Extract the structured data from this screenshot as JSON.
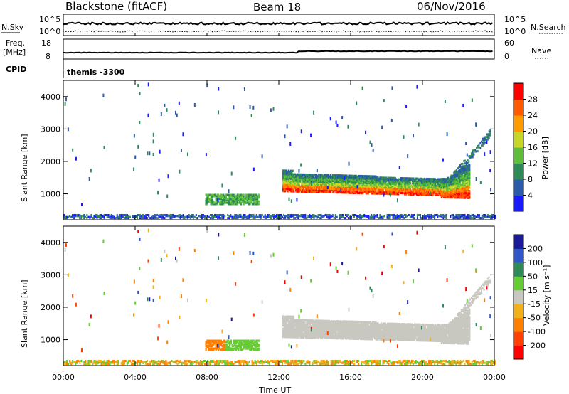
{
  "header": {
    "station": "Blackstone (fitACF)",
    "beam": "Beam 18",
    "date": "06/Nov/2016"
  },
  "top_panels": {
    "nsky_label": "N.Sky",
    "nsearch_label": "N.Search",
    "nsky_ticks": [
      "10^5",
      "10^0"
    ],
    "nsearch_ticks": [
      "10^5",
      "10^0"
    ],
    "freq_label": "Freq.",
    "freq_unit": "[MHz]",
    "freq_ticks": [
      "18",
      "8"
    ],
    "nave_label": "Nave",
    "nave_ticks": [
      "60",
      "0"
    ],
    "cpid_label": "CPID",
    "cpid_text": "themis -3300"
  },
  "chart_data": [
    {
      "type": "heatmap",
      "name": "power",
      "ylabel": "Slant Range [km]",
      "yticks": [
        "1000",
        "2000",
        "3000",
        "4000"
      ],
      "ylim": [
        200,
        4500
      ],
      "xlim": [
        0,
        24
      ],
      "colorbar_label": "Power [dB]",
      "colorbar_ticks": [
        "4",
        "8",
        "12",
        "16",
        "20",
        "24",
        "28"
      ],
      "colors": [
        "#1a1aff",
        "#2a5aa8",
        "#2e8b57",
        "#5fbf3a",
        "#c8d62a",
        "#ff9a00",
        "#ff5a00",
        "#ff0000"
      ],
      "regions": [
        {
          "t0": 12.2,
          "t1": 22.6,
          "r_low": 900,
          "r_high": 1650,
          "level": "strong"
        },
        {
          "t0": 7.9,
          "t1": 10.9,
          "r_low": 650,
          "r_high": 950,
          "level": "medium"
        },
        {
          "t0": 0.0,
          "t1": 24.0,
          "r_low": 200,
          "r_high": 320,
          "level": "weak"
        }
      ]
    },
    {
      "type": "heatmap",
      "name": "velocity",
      "ylabel": "Slant Range [km]",
      "yticks": [
        "1000",
        "2000",
        "3000",
        "4000"
      ],
      "ylim": [
        200,
        4500
      ],
      "xlim": [
        0,
        24
      ],
      "xticks": [
        "00:00",
        "04:00",
        "08:00",
        "12:00",
        "16:00",
        "20:00",
        "00:00"
      ],
      "xlabel": "Time UT",
      "colorbar_label": "Velocity [m s⁻¹]",
      "colorbar_ticks": [
        "200",
        "100",
        "50",
        "15",
        "-15",
        "-50",
        "-100",
        "-200"
      ],
      "colors": [
        "#1a1a99",
        "#2f55c8",
        "#2e8b57",
        "#66cc33",
        "#c8c8c0",
        "#f2b01a",
        "#ff8000",
        "#ff4000",
        "#ff0000"
      ]
    }
  ]
}
